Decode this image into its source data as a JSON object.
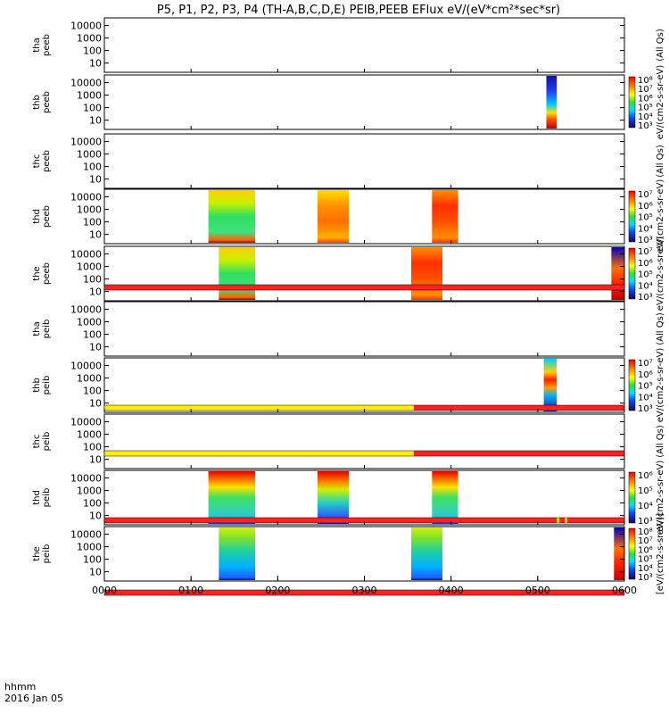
{
  "chart_data": {
    "type": "heatmap",
    "title": "P5, P1, P2, P3, P4 (TH-A,B,C,D,E) PEIB,PEEB EFlux eV/(eV*cm²*sec*sr)",
    "x_range": [
      "0000",
      "0600"
    ],
    "x_ticks": [
      "0000",
      "0100",
      "0200",
      "0300",
      "0400",
      "0500",
      "0600"
    ],
    "x_footer_1": "hhmm",
    "x_footer_2": "2016 Jan 05",
    "y_ticks": [
      "10000",
      "1000",
      "100",
      "10"
    ],
    "y_scale": "log",
    "panels": [
      {
        "label": "tha\npeeb",
        "y_ticks": [
          "10000",
          "1000",
          "100",
          "10"
        ],
        "blocks": [],
        "colorbar_label": "(All Qs)"
      },
      {
        "label": "thb\npeeb",
        "y_ticks": [
          "10000",
          "1000",
          "100",
          "10"
        ],
        "blocks": [
          {
            "x0": 0.85,
            "x1": 0.87,
            "profile": "red-low"
          }
        ],
        "colorbar": [
          "10⁸",
          "10⁷",
          "10⁶",
          "10⁵",
          "10⁴",
          "10³"
        ],
        "colorbar_label": "eV/(cm2-s-sr-eV)"
      },
      {
        "label": "thc\npeeb",
        "y_ticks": [
          "10000",
          "1000",
          "100",
          "10"
        ],
        "blocks": [],
        "colorbar_label": "(All Qs)"
      },
      {
        "label": "thd\npeeb",
        "y_ticks": [
          "10000",
          "1000",
          "100",
          "10"
        ],
        "blocks": [
          {
            "x0": 0.2,
            "x1": 0.29,
            "profile": "green-mid"
          },
          {
            "x0": 0.41,
            "x1": 0.47,
            "profile": "orange"
          },
          {
            "x0": 0.63,
            "x1": 0.68,
            "profile": "red"
          }
        ],
        "colorbar": [
          "10⁷",
          "10⁶",
          "10⁵",
          "10⁴",
          "10³"
        ],
        "colorbar_label": "eV/(cm2-s-sr-eV)"
      },
      {
        "label": "the\npeeb",
        "y_ticks": [
          "10000",
          "1000",
          "100",
          "10"
        ],
        "blocks": [
          {
            "x0": 0.22,
            "x1": 0.29,
            "profile": "green-mid"
          },
          {
            "x0": 0.59,
            "x1": 0.65,
            "profile": "red"
          },
          {
            "x0": 0.975,
            "x1": 1.0,
            "profile": "edge"
          }
        ],
        "colorbar": [
          "10⁷",
          "10⁶",
          "10⁵",
          "10⁴",
          "10³"
        ],
        "colorbar_label": "eV/(cm2-s-sr-eV)"
      },
      {
        "label": "tha\npeib",
        "y_ticks": [
          "10000",
          "1000",
          "100",
          "10"
        ],
        "blocks": [],
        "colorbar_label": "(All Qs)"
      },
      {
        "label": "thb\npeib",
        "y_ticks": [
          "10000",
          "1000",
          "100",
          "10"
        ],
        "blocks": [
          {
            "x0": 0.845,
            "x1": 0.87,
            "profile": "mixed"
          }
        ],
        "colorbar": [
          "10⁷",
          "10⁶",
          "10⁵",
          "10⁴",
          "10³"
        ],
        "colorbar_label": "eV/(cm2-s-sr-eV)"
      },
      {
        "label": "thc\npeib",
        "y_ticks": [
          "10000",
          "1000",
          "100",
          "10"
        ],
        "blocks": [],
        "colorbar_label": "(All Qs)"
      },
      {
        "label": "thd\npeib",
        "y_ticks": [
          "10000",
          "1000",
          "100",
          "10"
        ],
        "blocks": [
          {
            "x0": 0.2,
            "x1": 0.29,
            "profile": "ion"
          },
          {
            "x0": 0.41,
            "x1": 0.47,
            "profile": "ion-low"
          },
          {
            "x0": 0.63,
            "x1": 0.68,
            "profile": "ion"
          }
        ],
        "colorbar": [
          "10⁶",
          "10⁵",
          "10⁴",
          "10³"
        ],
        "colorbar_label": "eV/(cm2-s-sr-eV)"
      },
      {
        "label": "the\npeib",
        "y_ticks": [
          "10000",
          "1000",
          "100",
          "10"
        ],
        "blocks": [
          {
            "x0": 0.22,
            "x1": 0.29,
            "profile": "ion-cool"
          },
          {
            "x0": 0.59,
            "x1": 0.65,
            "profile": "ion-cool"
          },
          {
            "x0": 0.98,
            "x1": 1.0,
            "profile": "edge"
          }
        ],
        "colorbar": [
          "10⁸",
          "10⁷",
          "10⁶",
          "10⁵",
          "10⁴",
          "10³"
        ],
        "colorbar_label": "[eV/(cm2-s-sr-eV)]"
      }
    ],
    "flag_bars": [
      {
        "after_panel": 4,
        "segments": [
          {
            "x0": 0,
            "x1": 1,
            "color": "#ff2020"
          }
        ]
      },
      {
        "after_panel": 5,
        "segments": [
          {
            "x0": 0,
            "x1": 0.595,
            "color": "#ffee00"
          },
          {
            "x0": 0.595,
            "x1": 1,
            "color": "#ff2020"
          }
        ]
      },
      {
        "after_panel": 6,
        "segments": [
          {
            "x0": 0,
            "x1": 0.595,
            "color": "#ffee00"
          },
          {
            "x0": 0.595,
            "x1": 1,
            "color": "#ff2020"
          }
        ]
      },
      {
        "after_panel": 7,
        "segments": [
          {
            "x0": 0,
            "x1": 1,
            "color": "#ff2020"
          },
          {
            "x0": 0.87,
            "x1": 0.875,
            "color": "#ffee00"
          },
          {
            "x0": 0.885,
            "x1": 0.89,
            "color": "#ffee00"
          }
        ]
      },
      {
        "after_panel": 8,
        "segments": [
          {
            "x0": 0,
            "x1": 1,
            "color": "#ff2020"
          }
        ]
      }
    ]
  }
}
